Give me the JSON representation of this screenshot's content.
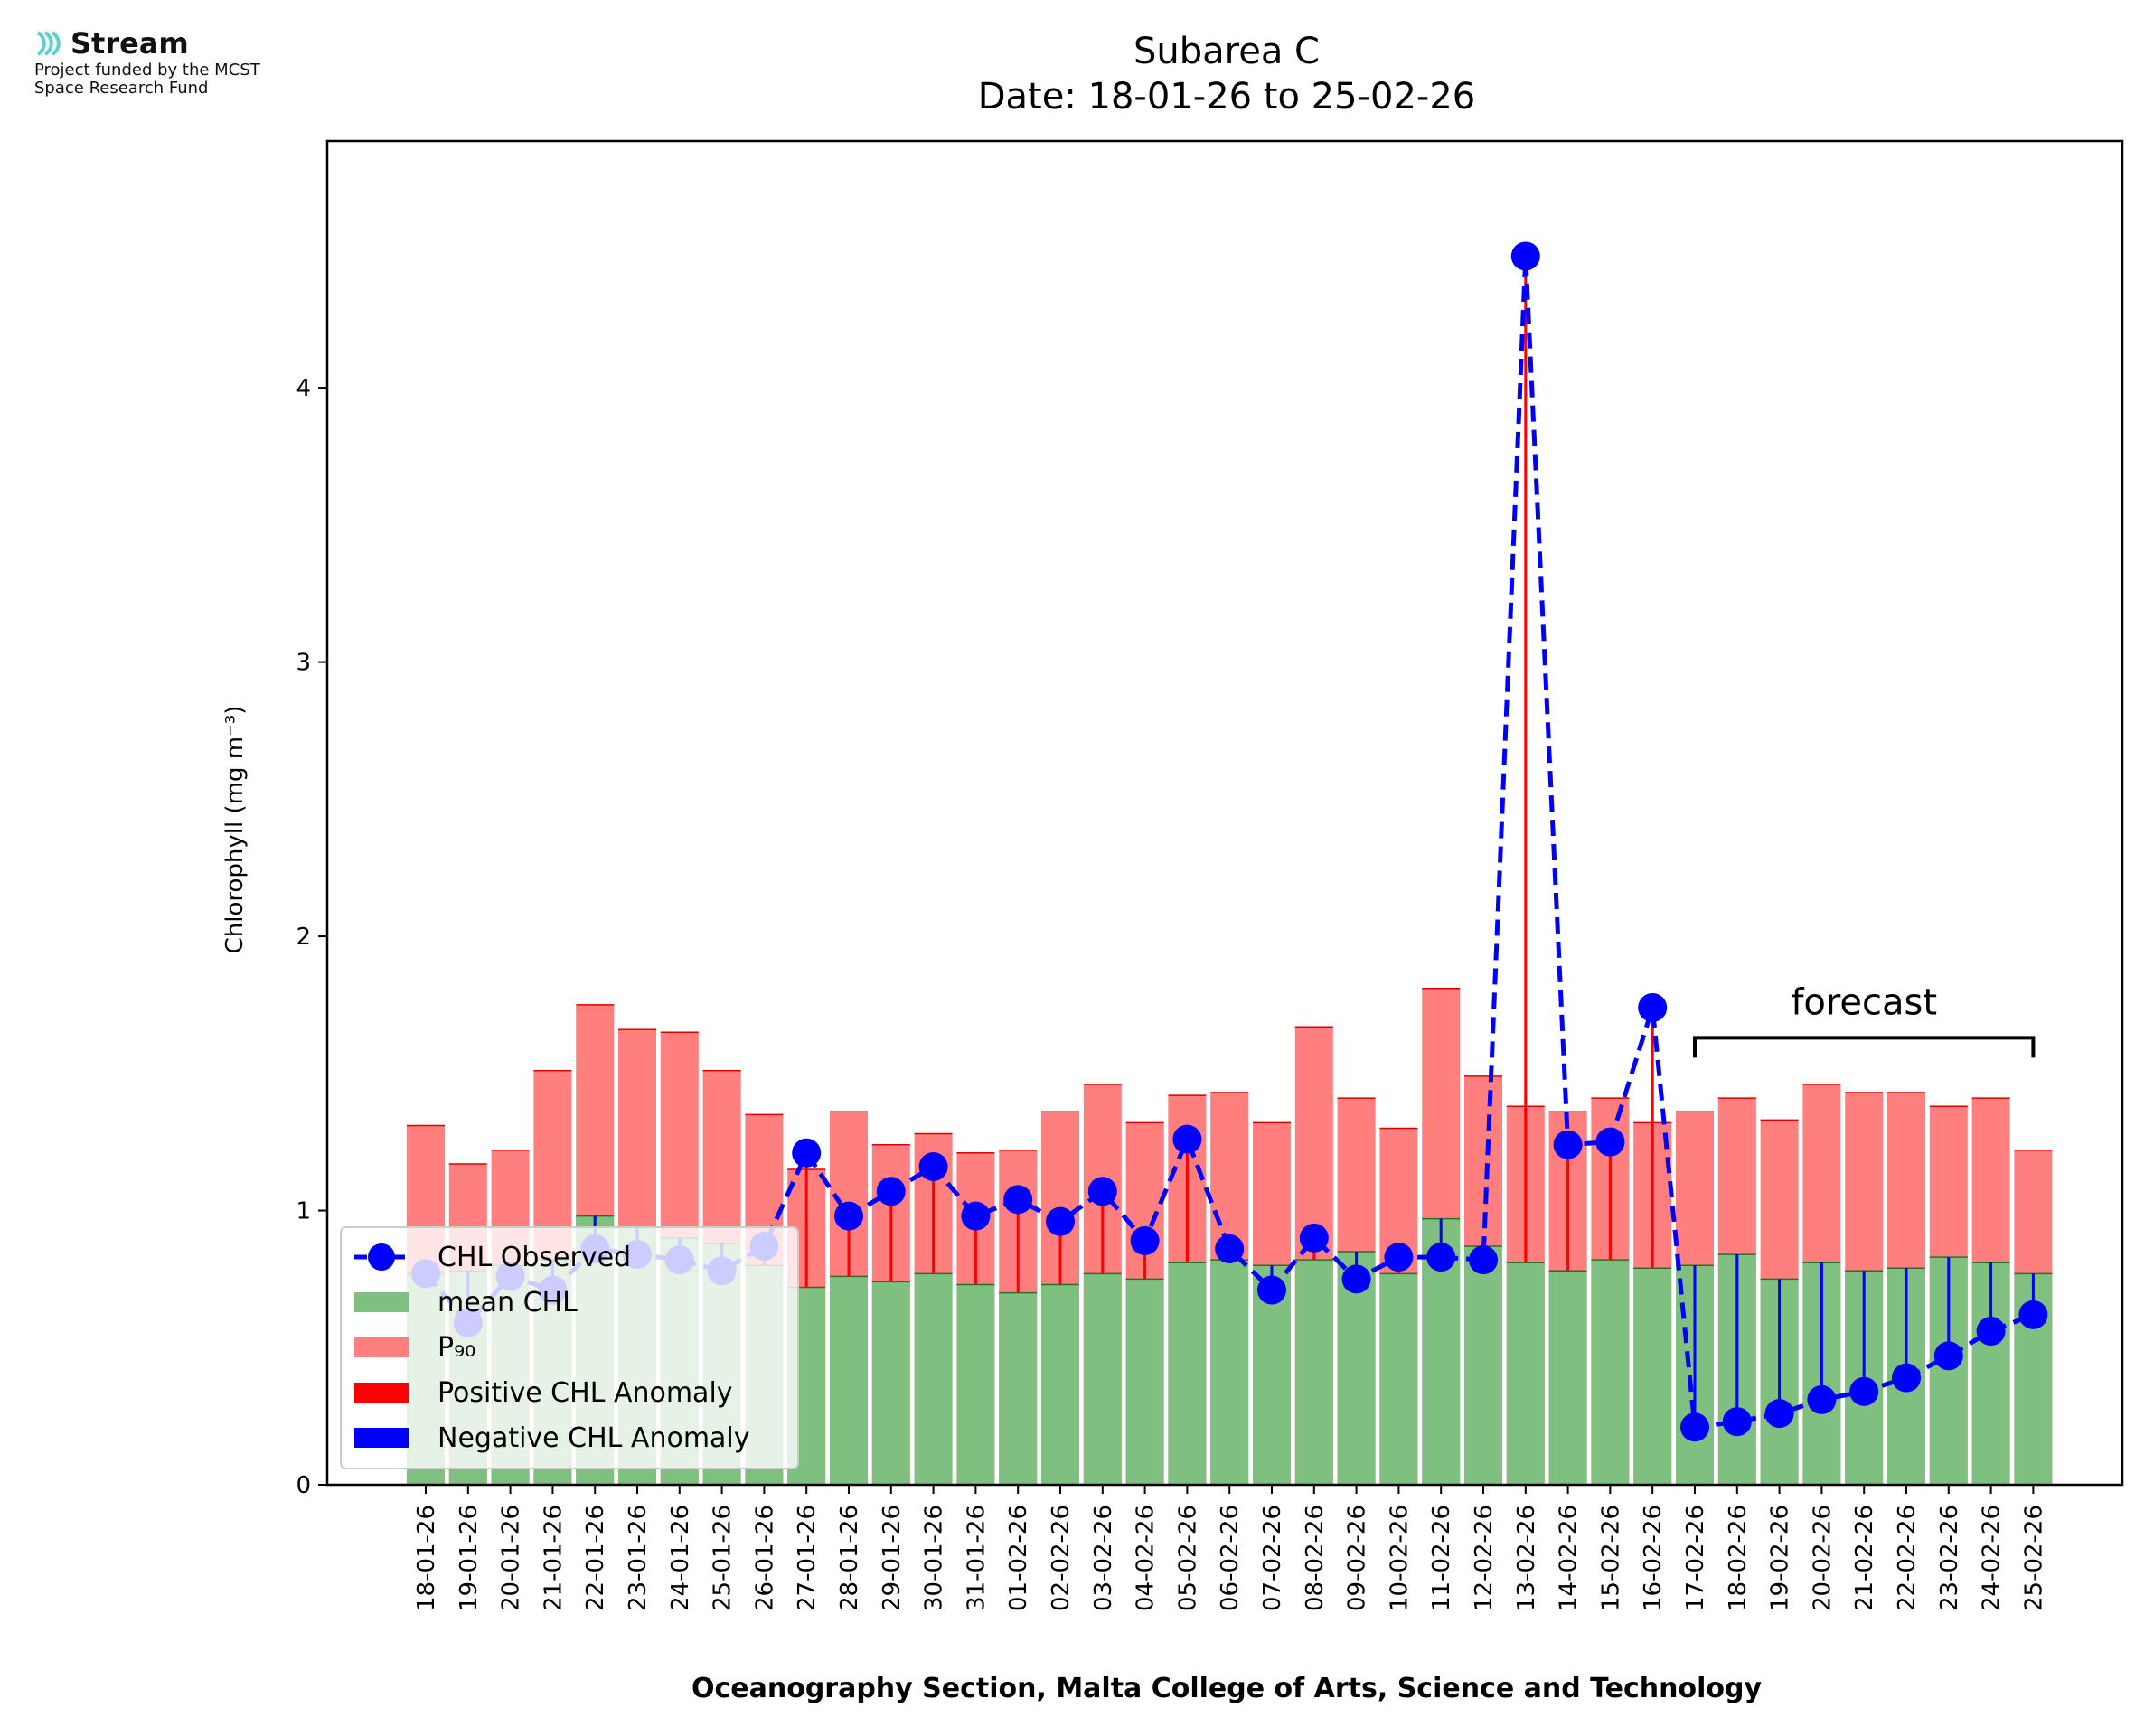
{
  "logo": {
    "name": "Stream",
    "line1": "Project funded by the MCST",
    "line2": "Space Research Fund",
    "accent": "#5fd0cf"
  },
  "chart_data": {
    "type": "bar",
    "title": "Subarea C",
    "subtitle": "Date: 18-01-26 to 25-02-26",
    "xlabel": "Oceanography Section, Malta College of Arts, Science and Technology",
    "ylabel": "Chlorophyll (mg m⁻³)",
    "ylim": [
      0,
      4.9
    ],
    "yticks": [
      0,
      1,
      2,
      3,
      4
    ],
    "grid": false,
    "legend_position": "lower-left",
    "categories": [
      "18-01-26",
      "19-01-26",
      "20-01-26",
      "21-01-26",
      "22-01-26",
      "23-01-26",
      "24-01-26",
      "25-01-26",
      "26-01-26",
      "27-01-26",
      "28-01-26",
      "29-01-26",
      "30-01-26",
      "31-01-26",
      "01-02-26",
      "02-02-26",
      "03-02-26",
      "04-02-26",
      "05-02-26",
      "06-02-26",
      "07-02-26",
      "08-02-26",
      "09-02-26",
      "10-02-26",
      "11-02-26",
      "12-02-26",
      "13-02-26",
      "14-02-26",
      "15-02-26",
      "16-02-26",
      "17-02-26",
      "18-02-26",
      "19-02-26",
      "20-02-26",
      "21-02-26",
      "22-02-26",
      "23-02-26",
      "24-02-26",
      "25-02-26"
    ],
    "series": [
      {
        "name": "mean CHL",
        "type": "bar",
        "color": "#7fbf7f",
        "values": [
          0.77,
          0.78,
          0.8,
          0.82,
          0.98,
          0.94,
          0.9,
          0.88,
          0.8,
          0.72,
          0.76,
          0.74,
          0.77,
          0.73,
          0.7,
          0.73,
          0.77,
          0.75,
          0.81,
          0.82,
          0.8,
          0.82,
          0.85,
          0.77,
          0.97,
          0.87,
          0.81,
          0.78,
          0.82,
          0.79,
          0.8,
          0.84,
          0.75,
          0.81,
          0.78,
          0.79,
          0.83,
          0.81,
          0.77
        ]
      },
      {
        "name": "P₉₀",
        "type": "bar",
        "color": "#ff7f7f",
        "values": [
          1.31,
          1.17,
          1.22,
          1.51,
          1.75,
          1.66,
          1.65,
          1.51,
          1.35,
          1.15,
          1.36,
          1.24,
          1.28,
          1.21,
          1.22,
          1.36,
          1.46,
          1.32,
          1.42,
          1.43,
          1.32,
          1.67,
          1.41,
          1.3,
          1.81,
          1.49,
          1.38,
          1.36,
          1.41,
          1.32,
          1.36,
          1.41,
          1.33,
          1.46,
          1.43,
          1.43,
          1.38,
          1.41,
          1.22
        ]
      },
      {
        "name": "CHL Observed",
        "type": "line",
        "color": "#0000ff",
        "values": [
          0.77,
          0.59,
          0.76,
          0.71,
          0.86,
          0.84,
          0.82,
          0.78,
          0.87,
          1.21,
          0.98,
          1.07,
          1.16,
          0.98,
          1.04,
          0.96,
          1.07,
          0.89,
          1.26,
          0.86,
          0.71,
          0.9,
          0.75,
          0.83,
          0.83,
          0.82,
          4.48,
          1.24,
          1.25,
          1.74,
          0.21,
          0.23,
          0.26,
          0.31,
          0.34,
          0.39,
          0.47,
          0.56,
          0.62
        ]
      },
      {
        "name": "Positive CHL Anomaly",
        "type": "anomaly",
        "color": "#ff0000"
      },
      {
        "name": "Negative CHL Anomaly",
        "type": "anomaly",
        "color": "#0000ff"
      }
    ],
    "annotations": [
      {
        "text": "forecast",
        "from": "17-02-26",
        "to": "25-02-26",
        "y": 1.63
      }
    ]
  }
}
